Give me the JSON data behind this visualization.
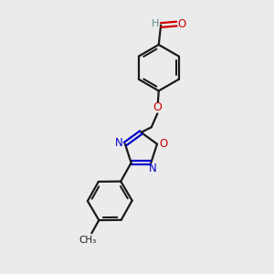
{
  "background_color": "#ebebeb",
  "bond_color": "#1a1a1a",
  "oxygen_color": "#cc0000",
  "nitrogen_color": "#0000cc",
  "aldehyde_h_color": "#5a8888",
  "figsize": [
    3.0,
    3.0
  ],
  "dpi": 100,
  "xlim": [
    0,
    10
  ],
  "ylim": [
    0,
    10
  ]
}
